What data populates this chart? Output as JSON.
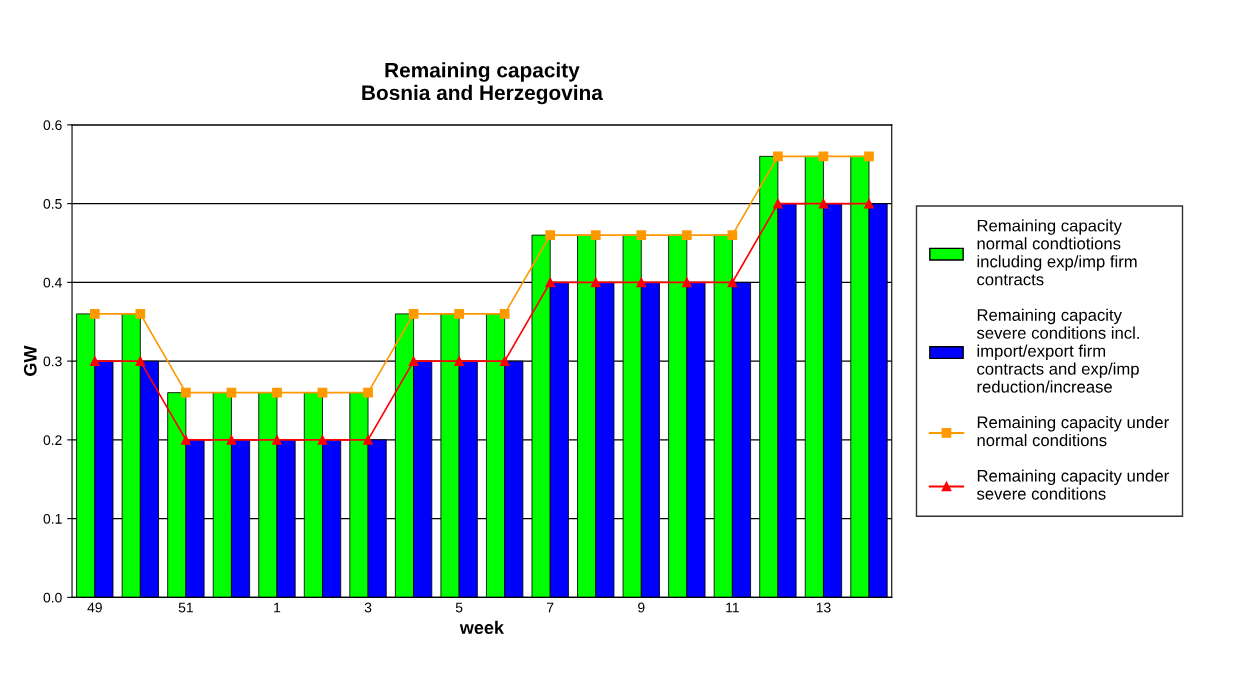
{
  "chart_data": {
    "type": "bar",
    "title": "Remaining capacity\nBosnia and Herzegovina",
    "xlabel": "week",
    "ylabel": "GW",
    "categories": [
      "49",
      null,
      "51",
      null,
      "1",
      null,
      "3",
      null,
      "5",
      null,
      "7",
      null,
      "9",
      null,
      "11",
      null,
      "13",
      null
    ],
    "series": [
      {
        "name": "Remaining capacity normal condtiotions including exp/imp firm contracts",
        "color": "#00ff00",
        "values": [
          0.36,
          0.36,
          0.26,
          0.26,
          0.26,
          0.26,
          0.26,
          0.36,
          0.36,
          0.36,
          0.46,
          0.46,
          0.46,
          0.46,
          0.46,
          0.56,
          0.56,
          0.56
        ]
      },
      {
        "name": "Remaining capacity severe conditions incl. import/export firm contracts and exp/imp reduction/increase",
        "color": "#0000ff",
        "values": [
          0.3,
          0.3,
          0.2,
          0.2,
          0.2,
          0.2,
          0.2,
          0.3,
          0.3,
          0.3,
          0.4,
          0.4,
          0.4,
          0.4,
          0.4,
          0.5,
          0.5,
          0.5
        ]
      },
      {
        "name": "Remaining capacity under normal conditions",
        "type": "line",
        "marker": "square",
        "color": "#ff9900",
        "values": [
          0.36,
          0.36,
          0.26,
          0.26,
          0.26,
          0.26,
          0.26,
          0.36,
          0.36,
          0.36,
          0.46,
          0.46,
          0.46,
          0.46,
          0.46,
          0.56,
          0.56,
          0.56
        ]
      },
      {
        "name": "Remaining capacity under severe conditions",
        "type": "line",
        "marker": "triangle",
        "color": "#ff0000",
        "values": [
          0.3,
          0.3,
          0.2,
          0.2,
          0.2,
          0.2,
          0.2,
          0.3,
          0.3,
          0.3,
          0.4,
          0.4,
          0.4,
          0.4,
          0.4,
          0.5,
          0.5,
          0.5
        ]
      }
    ],
    "ylim": [
      0,
      0.6
    ],
    "yticks": [
      {
        "value": 0,
        "label": "0.0"
      },
      0.1,
      0.2,
      0.3,
      0.4,
      0.5,
      0.6
    ],
    "grid": "y",
    "legend": "right"
  }
}
